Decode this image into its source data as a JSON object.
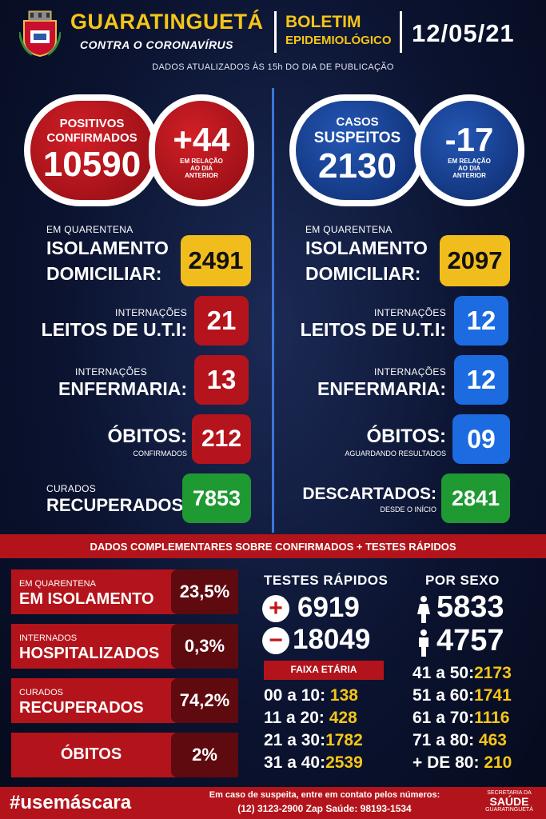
{
  "header": {
    "city": "GUARATINGUETÁ",
    "subtitle": "CONTRA O CORONAVÍRUS",
    "boletim_line1": "BOLETIM",
    "boletim_line2": "EPIDEMIOLÓGICO",
    "date": "12/05/21",
    "updated": "DADOS ATUALIZADOS ÀS 15h DO DIA DE PUBLICAÇÃO"
  },
  "confirmed": {
    "label1": "POSITIVOS",
    "label2": "CONFIRMADOS",
    "total": "10590",
    "delta": "+44",
    "delta_note1": "EM RELAÇÃO",
    "delta_note2": "AO DIA",
    "delta_note3": "ANTERIOR",
    "quarantine_small": "EM QUARENTENA",
    "quarantine_line1": "ISOLAMENTO",
    "quarantine_line2": "DOMICILIAR:",
    "quarantine_value": "2491",
    "uti_small": "INTERNAÇÕES",
    "uti_big": "LEITOS DE U.T.I:",
    "uti_value": "21",
    "enf_small": "INTERNAÇÕES",
    "enf_big": "ENFERMARIA:",
    "enf_value": "13",
    "obitos_big": "ÓBITOS:",
    "obitos_small": "CONFIRMADOS",
    "obitos_value": "212",
    "curados_small": "CURADOS",
    "curados_big": "RECUPERADOS:",
    "curados_value": "7853"
  },
  "suspected": {
    "label1": "CASOS",
    "label2": "SUSPEITOS",
    "total": "2130",
    "delta": "-17",
    "delta_note1": "EM RELAÇÃO",
    "delta_note2": "AO DIA",
    "delta_note3": "ANTERIOR",
    "quarantine_small": "EM QUARENTENA",
    "quarantine_line1": "ISOLAMENTO",
    "quarantine_line2": "DOMICILIAR:",
    "quarantine_value": "2097",
    "uti_small": "INTERNAÇÕES",
    "uti_big": "LEITOS DE U.T.I:",
    "uti_value": "12",
    "enf_small": "INTERNAÇÕES",
    "enf_big": "ENFERMARIA:",
    "enf_value": "12",
    "obitos_big": "ÓBITOS:",
    "obitos_small": "AGUARDANDO RESULTADOS",
    "obitos_value": "09",
    "descartados_big": "DESCARTADOS:",
    "descartados_small": "DESDE O INÍCIO",
    "descartados_value": "2841"
  },
  "complement_title": "DADOS COMPLEMENTARES SOBRE CONFIRMADOS + TESTES RÁPIDOS",
  "percentages": [
    {
      "small": "EM QUARENTENA",
      "big": "EM ISOLAMENTO",
      "value": "23,5%"
    },
    {
      "small": "INTERNADOS",
      "big": "HOSPITALIZADOS",
      "value": "0,3%"
    },
    {
      "small": "CURADOS",
      "big": "RECUPERADOS",
      "value": "74,2%"
    },
    {
      "small": "",
      "big": "ÓBITOS",
      "value": "2%"
    }
  ],
  "tests": {
    "title": "TESTES RÁPIDOS",
    "positive": "6919",
    "negative": "18049"
  },
  "sex": {
    "title": "POR SEXO",
    "female": "5833",
    "male": "4757"
  },
  "age": {
    "title": "FAIXA ETÁRIA",
    "left": [
      {
        "range": "00 a 10:",
        "value": "138"
      },
      {
        "range": "11 a 20:",
        "value": "428"
      },
      {
        "range": "21 a 30:",
        "value": "1782"
      },
      {
        "range": "31 a 40:",
        "value": "2539"
      }
    ],
    "right": [
      {
        "range": "41 a 50:",
        "value": "2173"
      },
      {
        "range": "51 a 60:",
        "value": "1741"
      },
      {
        "range": "61 a 70:",
        "value": "1116"
      },
      {
        "range": "71 a 80:",
        "value": "463"
      },
      {
        "range": "+ DE 80:",
        "value": "210"
      }
    ]
  },
  "footer": {
    "hashtag": "#usemáscara",
    "contact_line1": "Em caso de suspeita, entre em contato pelos números:",
    "contact_line2": "(12) 3123-2900 Zap Saúde: 98193-1534",
    "sec_line1": "SECRETARIA DA",
    "sec_line2": "SAÚDE",
    "sec_line3": "GUARATINGUETÁ"
  },
  "colors": {
    "accent_yellow": "#f5c518",
    "red": "#b3141b",
    "blue": "#1d6be0",
    "green": "#1f9a33"
  }
}
